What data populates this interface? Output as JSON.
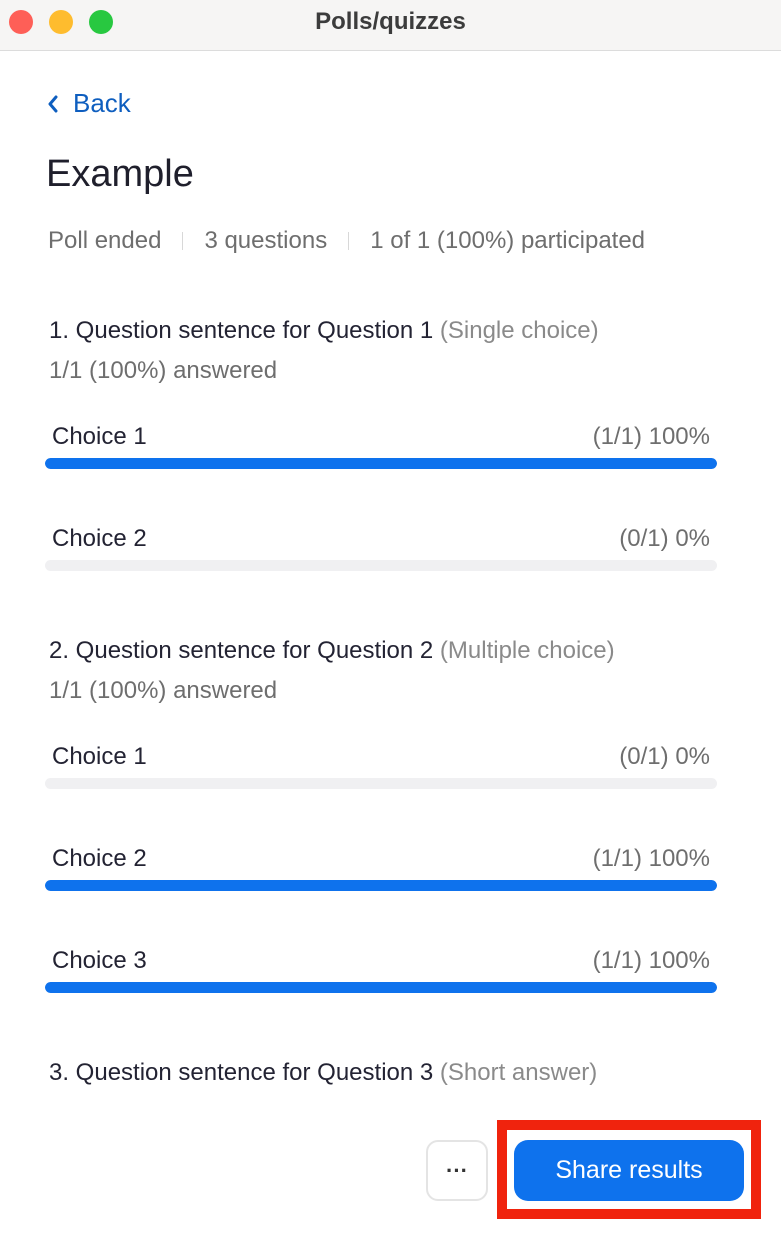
{
  "window": {
    "title": "Polls/quizzes"
  },
  "nav": {
    "back_label": "Back"
  },
  "poll": {
    "title": "Example",
    "status": "Poll ended",
    "question_count": "3 questions",
    "participation": "1 of 1 (100%) participated"
  },
  "questions": [
    {
      "title": "1. Question sentence for Question 1",
      "type": "(Single choice)",
      "answered": "1/1 (100%) answered",
      "choices": [
        {
          "label": "Choice 1",
          "result": "(1/1) 100%",
          "percent": 100
        },
        {
          "label": "Choice 2",
          "result": "(0/1) 0%",
          "percent": 0
        }
      ]
    },
    {
      "title": "2.  Question sentence for Question 2",
      "type": "(Multiple choice)",
      "answered": "1/1 (100%) answered",
      "choices": [
        {
          "label": "Choice 1",
          "result": "(0/1) 0%",
          "percent": 0
        },
        {
          "label": "Choice 2",
          "result": "(1/1) 100%",
          "percent": 100
        },
        {
          "label": "Choice 3",
          "result": "(1/1) 100%",
          "percent": 100
        }
      ]
    },
    {
      "title": "3.  Question sentence for Question 3",
      "type": "(Short answer)",
      "choices": []
    }
  ],
  "footer": {
    "more_label": "···",
    "share_label": "Share results"
  },
  "colors": {
    "accent": "#0e72ed",
    "highlight": "#f0230d",
    "link": "#0e5ebf"
  }
}
